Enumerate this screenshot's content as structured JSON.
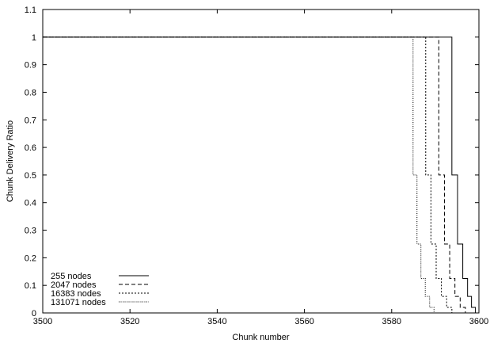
{
  "chart_data": {
    "type": "line",
    "title": "",
    "xlabel": "Chunk number",
    "ylabel": "Chunk Delivery Ratio",
    "xlim": [
      3500,
      3600
    ],
    "ylim": [
      0,
      1.1
    ],
    "xticks": [
      3500,
      3520,
      3540,
      3560,
      3580,
      3600
    ],
    "yticks": [
      0,
      0.1,
      0.2,
      0.3,
      0.4,
      0.5,
      0.6,
      0.7,
      0.8,
      0.9,
      1,
      1.1
    ],
    "grid": false,
    "legend_position": "bottom-left",
    "series": [
      {
        "name": "255 nodes",
        "dash": "solid",
        "points": [
          [
            3500,
            1
          ],
          [
            3593.8,
            1
          ],
          [
            3593.8,
            0.5
          ],
          [
            3595.1,
            0.5
          ],
          [
            3595.1,
            0.25
          ],
          [
            3596.3,
            0.25
          ],
          [
            3596.3,
            0.125
          ],
          [
            3597.4,
            0.125
          ],
          [
            3597.4,
            0.06
          ],
          [
            3598.3,
            0.06
          ],
          [
            3598.3,
            0.02
          ],
          [
            3599.2,
            0.02
          ],
          [
            3599.2,
            0
          ]
        ]
      },
      {
        "name": "2047 nodes",
        "dash": "dashed",
        "points": [
          [
            3500,
            1
          ],
          [
            3590.8,
            1
          ],
          [
            3590.8,
            0.5
          ],
          [
            3592.1,
            0.5
          ],
          [
            3592.1,
            0.25
          ],
          [
            3593.3,
            0.25
          ],
          [
            3593.3,
            0.125
          ],
          [
            3594.5,
            0.125
          ],
          [
            3594.5,
            0.06
          ],
          [
            3595.7,
            0.06
          ],
          [
            3595.7,
            0.02
          ],
          [
            3596.9,
            0.02
          ],
          [
            3596.9,
            0
          ]
        ]
      },
      {
        "name": "16383 nodes",
        "dash": "dotted",
        "points": [
          [
            3500,
            1
          ],
          [
            3587.8,
            1
          ],
          [
            3587.8,
            0.5
          ],
          [
            3589.0,
            0.5
          ],
          [
            3589.0,
            0.25
          ],
          [
            3590.2,
            0.25
          ],
          [
            3590.2,
            0.125
          ],
          [
            3591.4,
            0.125
          ],
          [
            3591.4,
            0.06
          ],
          [
            3592.6,
            0.06
          ],
          [
            3592.6,
            0.02
          ],
          [
            3593.8,
            0.02
          ],
          [
            3593.8,
            0
          ]
        ]
      },
      {
        "name": "131071 nodes",
        "dash": "dense-dotted",
        "points": [
          [
            3500,
            1
          ],
          [
            3584.9,
            1
          ],
          [
            3584.9,
            0.5
          ],
          [
            3585.8,
            0.5
          ],
          [
            3585.8,
            0.25
          ],
          [
            3586.7,
            0.25
          ],
          [
            3586.7,
            0.125
          ],
          [
            3587.7,
            0.125
          ],
          [
            3587.7,
            0.06
          ],
          [
            3588.7,
            0.06
          ],
          [
            3588.7,
            0.02
          ],
          [
            3589.7,
            0.02
          ],
          [
            3589.7,
            0
          ]
        ]
      }
    ]
  }
}
